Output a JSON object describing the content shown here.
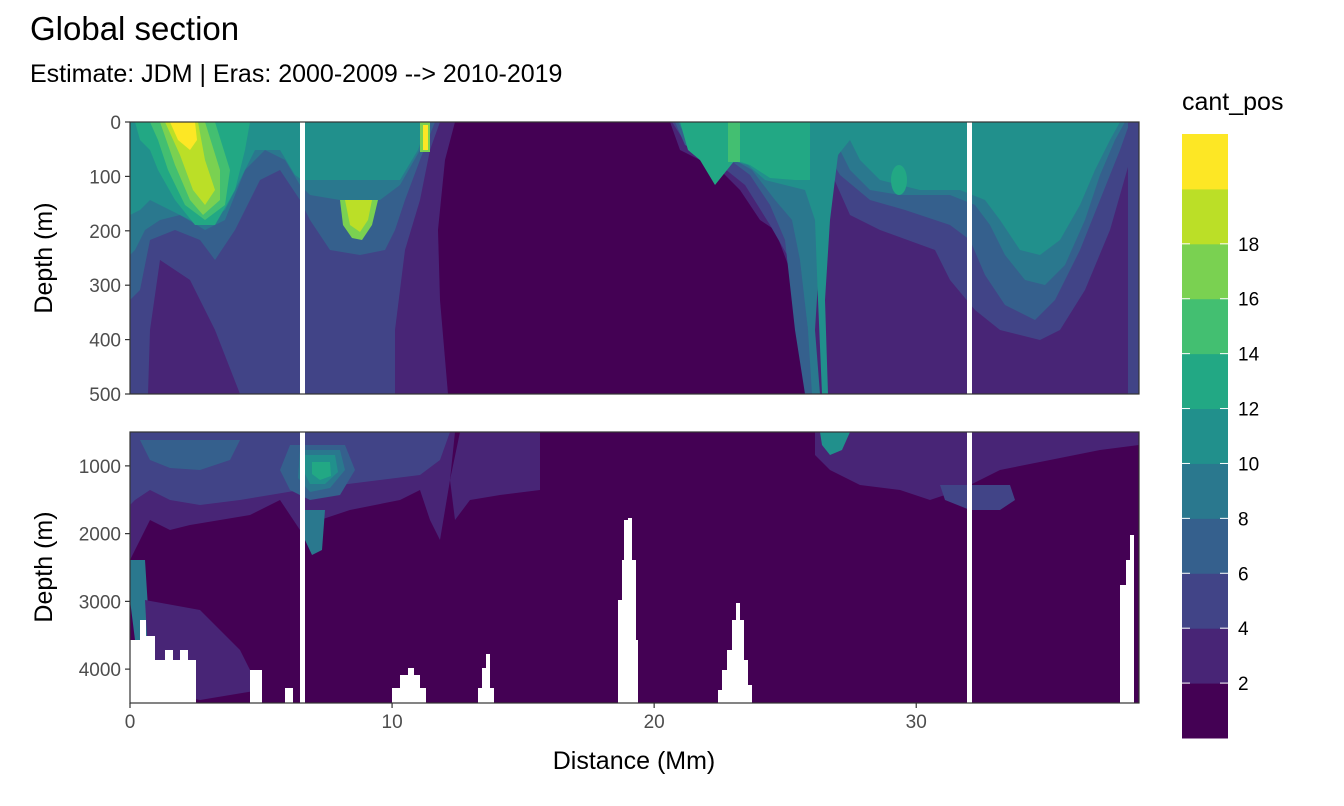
{
  "chart_data": {
    "type": "heatmap",
    "title": "Global section",
    "subtitle": "Estimate: JDM  | Eras: 2000-2009 --> 2010-2019",
    "xlabel": "Distance (Mm)",
    "xlim": [
      0,
      38.5
    ],
    "x_ticks": [
      "0",
      "10",
      "20",
      "30"
    ],
    "x_tick_values": [
      0,
      10,
      20,
      30
    ],
    "legend": {
      "title": "cant_pos",
      "position": "right",
      "labels": [
        "2",
        "4",
        "6",
        "8",
        "10",
        "12",
        "14",
        "16",
        "18"
      ],
      "bins": [
        {
          "lo": 0,
          "hi": 2,
          "color": "#440154"
        },
        {
          "lo": 2,
          "hi": 4,
          "color": "#482576"
        },
        {
          "lo": 4,
          "hi": 6,
          "color": "#414487"
        },
        {
          "lo": 6,
          "hi": 8,
          "color": "#35608D"
        },
        {
          "lo": 8,
          "hi": 10,
          "color": "#2A788E"
        },
        {
          "lo": 10,
          "hi": 12,
          "color": "#21908C"
        },
        {
          "lo": 12,
          "hi": 14,
          "color": "#22A884"
        },
        {
          "lo": 14,
          "hi": 16,
          "color": "#43BF71"
        },
        {
          "lo": 16,
          "hi": 18,
          "color": "#7AD151"
        },
        {
          "lo": 18,
          "hi": 20,
          "color": "#BBDF27"
        },
        {
          "lo": 20,
          "hi": 22,
          "color": "#FDE725"
        }
      ]
    },
    "panels": [
      {
        "name": "upper",
        "ylabel": "Depth (m)",
        "ylim": [
          0,
          500
        ],
        "y_ticks": [
          "0",
          "100",
          "200",
          "300",
          "400",
          "500"
        ],
        "y_tick_values": [
          0,
          100,
          200,
          300,
          400,
          500
        ]
      },
      {
        "name": "lower",
        "ylabel": "Depth (m)",
        "ylim": [
          500,
          4500
        ],
        "y_ticks": [
          "1000",
          "2000",
          "3000",
          "4000"
        ],
        "y_tick_values": [
          1000,
          2000,
          3000,
          4000
        ]
      }
    ],
    "station_gaps_mm": [
      6.6,
      32.1
    ],
    "bottom_gaps": [
      {
        "x0": 0.0,
        "x1": 2.5,
        "top": 3500
      },
      {
        "x0": 4.7,
        "x1": 5.2,
        "top": 4000
      },
      {
        "x0": 5.9,
        "x1": 6.3,
        "top": 4300
      },
      {
        "x0": 10.0,
        "x1": 11.3,
        "top": 4000
      },
      {
        "x0": 13.4,
        "x1": 13.9,
        "top": 3750
      },
      {
        "x0": 18.5,
        "x1": 19.6,
        "top": 1750
      },
      {
        "x0": 22.7,
        "x1": 23.9,
        "top": 3000
      },
      {
        "x0": 37.6,
        "x1": 38.2,
        "top": 2000
      }
    ],
    "surface_features": [
      {
        "x": 1.9,
        "depth": 120,
        "value": 18
      },
      {
        "x": 3.6,
        "depth": 200,
        "value": 16
      },
      {
        "x": 8.5,
        "depth": 190,
        "value": 16
      },
      {
        "x": 11.2,
        "depth": 40,
        "value": 19
      },
      {
        "x": 23.3,
        "depth": 60,
        "value": 14
      },
      {
        "x": 29.3,
        "depth": 110,
        "value": 14
      },
      {
        "x": 7.2,
        "depth": 1100,
        "value": 12
      },
      {
        "x": 33.0,
        "depth": 1300,
        "value": 6
      }
    ]
  }
}
